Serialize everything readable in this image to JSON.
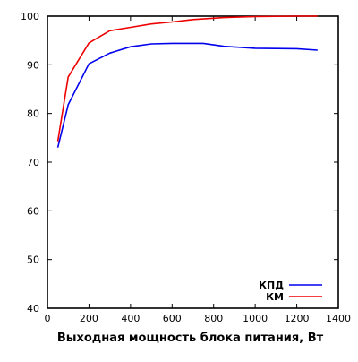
{
  "chart_data": {
    "type": "line",
    "title": "",
    "xlabel": "Выходная мощность блока питания, Вт",
    "ylabel": "",
    "xlim": [
      0,
      1400
    ],
    "ylim": [
      40,
      100
    ],
    "xticks": [
      0,
      200,
      400,
      600,
      800,
      1000,
      1200,
      1400
    ],
    "yticks": [
      40,
      50,
      60,
      70,
      80,
      90,
      100
    ],
    "grid": false,
    "legend_position": "bottom-right",
    "series": [
      {
        "name": "КПД",
        "color": "#0000ee",
        "x": [
          50,
          100,
          200,
          300,
          400,
          500,
          600,
          750,
          850,
          1000,
          1200,
          1300
        ],
        "y": [
          73,
          81.8,
          90.2,
          92.4,
          93.7,
          94.3,
          94.4,
          94.4,
          93.8,
          93.4,
          93.3,
          93.0
        ]
      },
      {
        "name": "КМ",
        "color": "#ee0000",
        "x": [
          50,
          100,
          200,
          300,
          400,
          500,
          600,
          700,
          850,
          1000,
          1200,
          1300
        ],
        "y": [
          74.3,
          87.5,
          94.5,
          97.0,
          97.7,
          98.4,
          98.8,
          99.3,
          99.7,
          99.9,
          100.0,
          100.0
        ]
      }
    ]
  }
}
